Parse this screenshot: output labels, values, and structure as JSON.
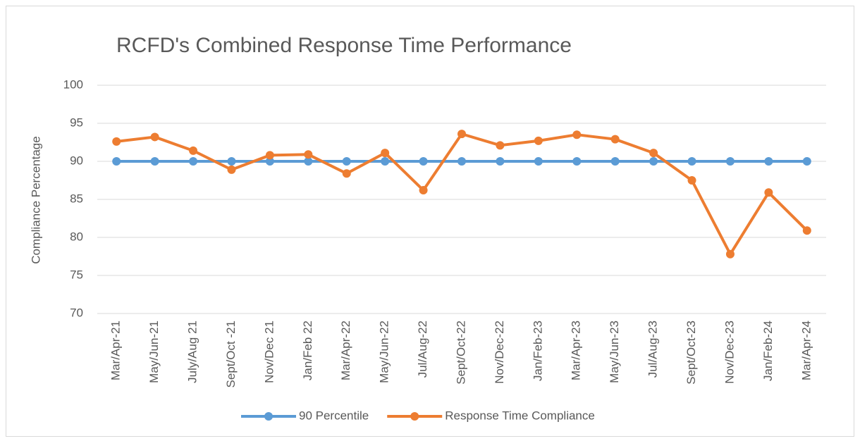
{
  "chart_data": {
    "type": "line",
    "title": "RCFD's Combined Response Time Performance",
    "y_label": "Compliance Percentage",
    "categories": [
      "Mar/Apr-21",
      "May/Jun-21",
      "July/Aug 21",
      "Sept/Oct -21",
      "Nov/Dec 21",
      "Jan/Feb 22",
      "Mar/Apr-22",
      "May/Jun-22",
      "Jul/Aug-22",
      "Sept/Oct-22",
      "Nov/Dec-22",
      "Jan/Feb-23",
      "Mar/Apr-23",
      "May/Jun-23",
      "Jul/Aug-23",
      "Sept/Oct-23",
      "Nov/Dec-23",
      "Jan/Feb-24",
      "Mar/Apr-24"
    ],
    "series": [
      {
        "name": "90 Percentile",
        "color": "#5b9bd5",
        "values": [
          90,
          90,
          90,
          90,
          90,
          90,
          90,
          90,
          90,
          90,
          90,
          90,
          90,
          90,
          90,
          90,
          90,
          90,
          90
        ]
      },
      {
        "name": "Response Time Compliance",
        "color": "#ed7d31",
        "values": [
          92.6,
          93.2,
          91.4,
          88.9,
          90.8,
          90.9,
          88.4,
          91.1,
          86.2,
          93.6,
          92.1,
          92.7,
          93.5,
          92.9,
          91.1,
          87.5,
          77.8,
          85.9,
          80.9
        ]
      }
    ],
    "ylim": [
      70,
      100
    ],
    "yticks": [
      70,
      75,
      80,
      85,
      90,
      95,
      100
    ],
    "grid": true,
    "legend": "bottom"
  }
}
